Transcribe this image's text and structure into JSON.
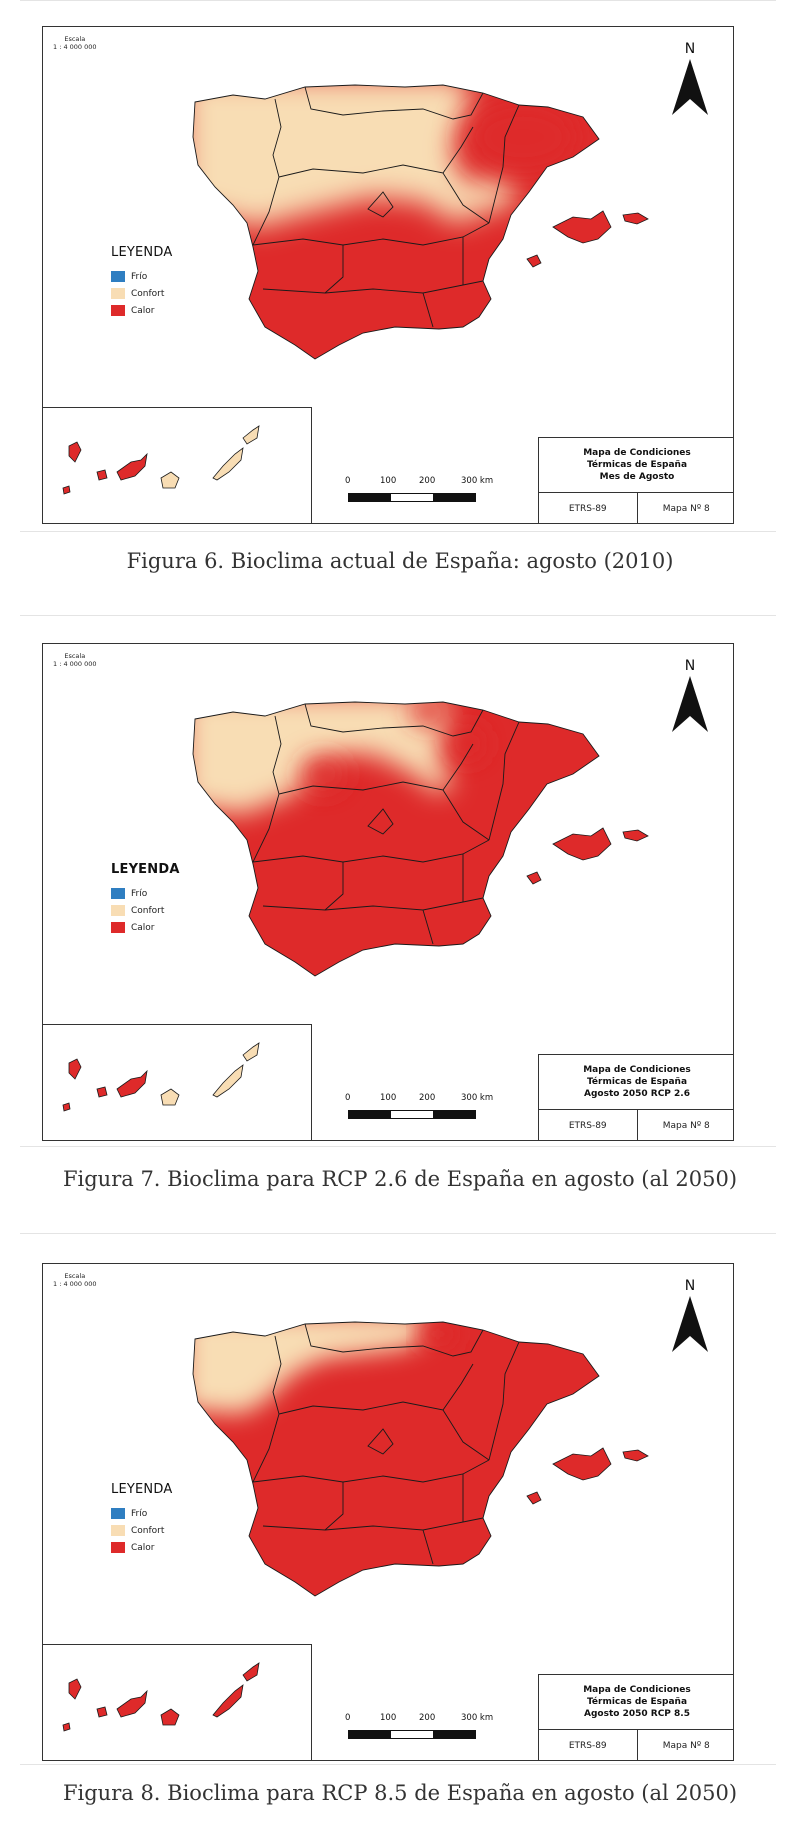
{
  "colors": {
    "frio": "#2f7ec1",
    "confort": "#f8ddb4",
    "calor": "#de2a2a",
    "border": "#1a1a1a"
  },
  "figures": [
    {
      "scale_title": "Escala",
      "scale_value": "1 : 4 000 000",
      "north_label": "N",
      "legend_title": "LEYENDA",
      "legend_items": [
        {
          "label": "Frío",
          "color_key": "frio"
        },
        {
          "label": "Confort",
          "color_key": "confort"
        },
        {
          "label": "Calor",
          "color_key": "calor"
        }
      ],
      "info_title_lines": [
        "Mapa de Condiciones",
        "Térmicas de España",
        "Mes de Agosto"
      ],
      "datum": "ETRS-89",
      "map_number": "Mapa Nº 8",
      "scalebar_labels": [
        "0",
        "100",
        "200",
        "300 km"
      ],
      "caption": "Figura 6. Bioclima actual de España: agosto (2010)"
    },
    {
      "scale_title": "Escala",
      "scale_value": "1 : 4 000 000",
      "north_label": "N",
      "legend_title": "LEYENDA",
      "legend_items": [
        {
          "label": "Frío",
          "color_key": "frio"
        },
        {
          "label": "Confort",
          "color_key": "confort"
        },
        {
          "label": "Calor",
          "color_key": "calor"
        }
      ],
      "info_title_lines": [
        "Mapa de Condiciones",
        "Térmicas de España",
        "Agosto 2050 RCP 2.6"
      ],
      "datum": "ETRS-89",
      "map_number": "Mapa Nº 8",
      "scalebar_labels": [
        "0",
        "100",
        "200",
        "300 km"
      ],
      "caption": "Figura 7. Bioclima para RCP 2.6 de España en agosto (al 2050)"
    },
    {
      "scale_title": "Escala",
      "scale_value": "1 : 4 000 000",
      "north_label": "N",
      "legend_title": "LEYENDA",
      "legend_items": [
        {
          "label": "Frío",
          "color_key": "frio"
        },
        {
          "label": "Confort",
          "color_key": "confort"
        },
        {
          "label": "Calor",
          "color_key": "calor"
        }
      ],
      "info_title_lines": [
        "Mapa de Condiciones",
        "Térmicas de España",
        "Agosto 2050 RCP 8.5"
      ],
      "datum": "ETRS-89",
      "map_number": "Mapa Nº 8",
      "scalebar_labels": [
        "0",
        "100",
        "200",
        "300 km"
      ],
      "caption": "Figura 8. Bioclima para RCP 8.5 de España en agosto (al 2050)"
    }
  ]
}
